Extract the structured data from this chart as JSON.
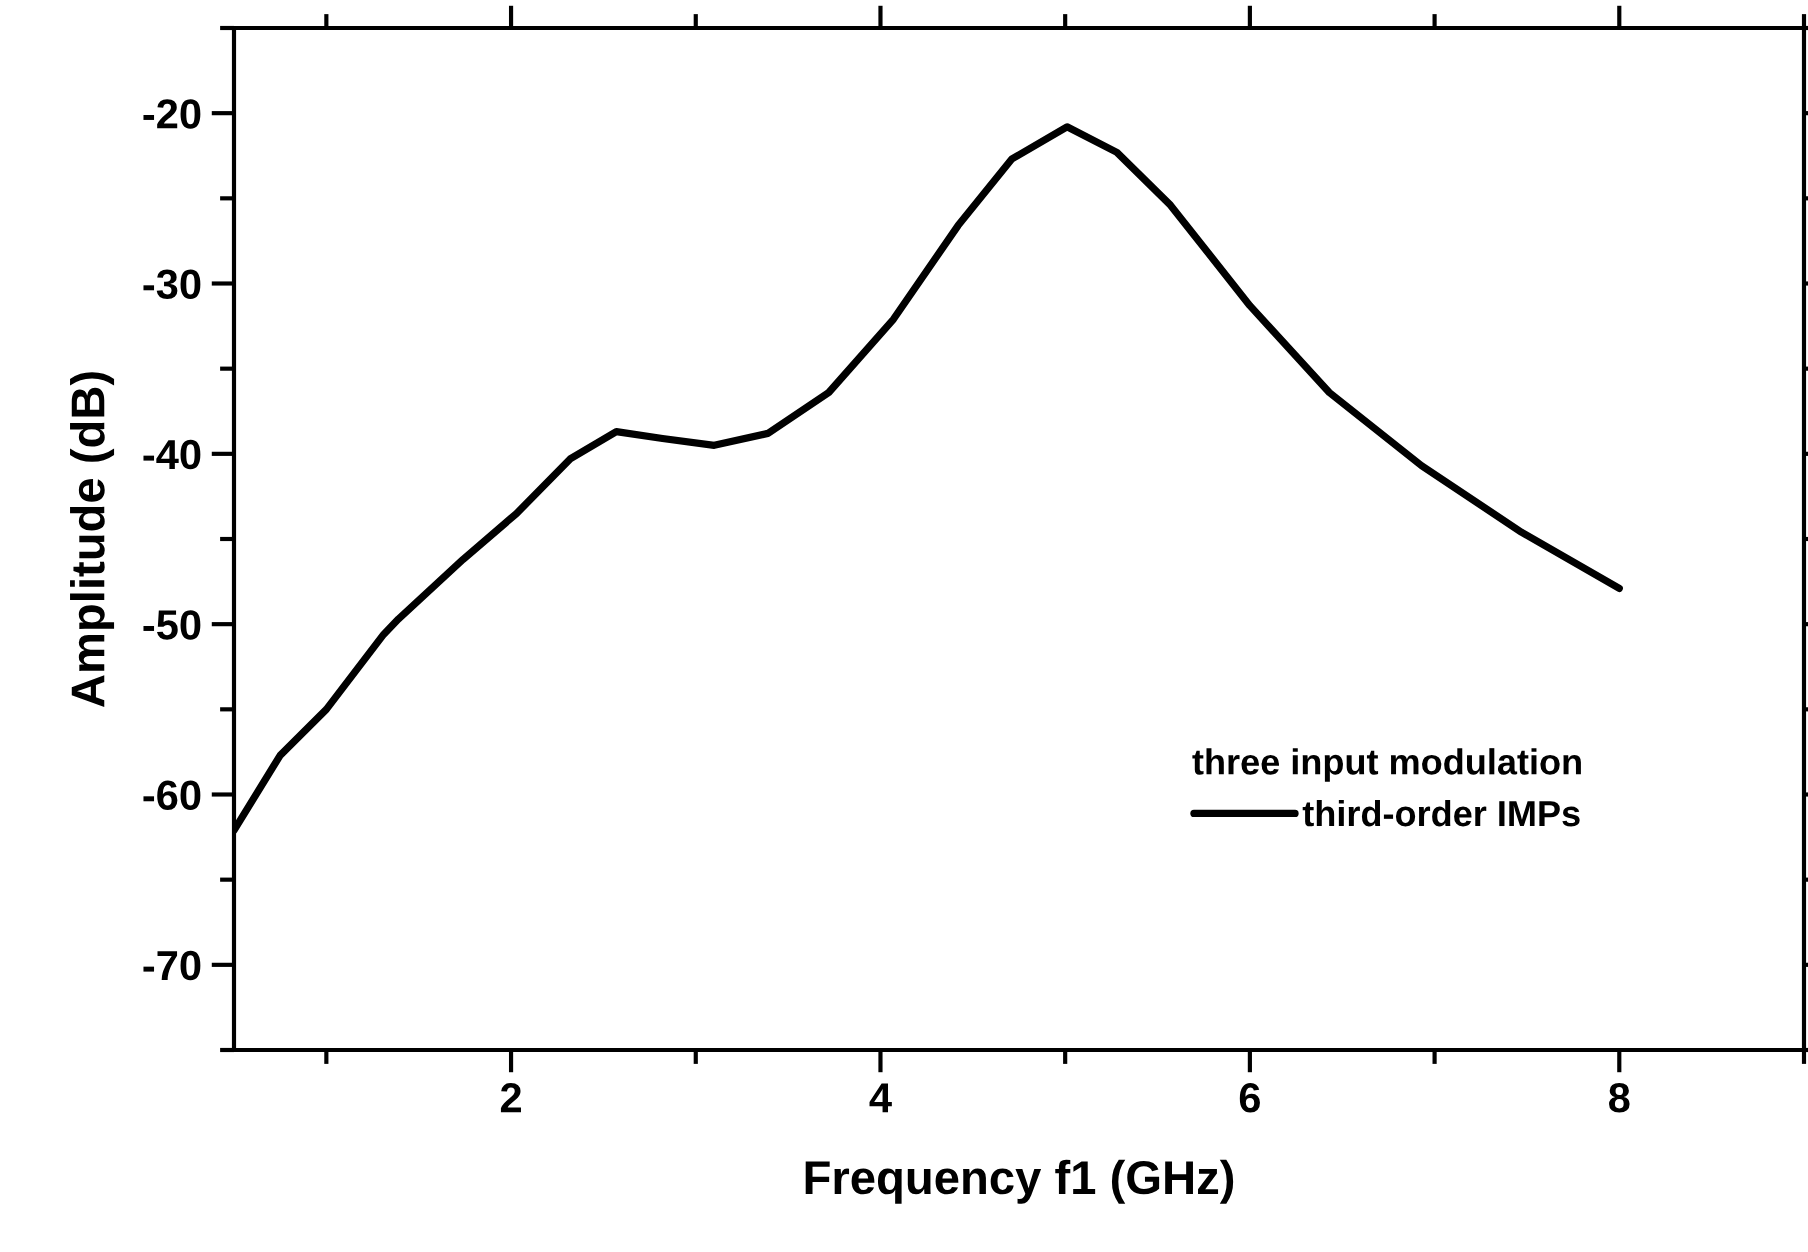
{
  "chart_data": {
    "type": "line",
    "xlabel": "Frequency f1 (GHz)",
    "ylabel": "Amplitude (dB)",
    "legend_title": "three input modulation",
    "legend": "lower right",
    "grid": false,
    "marker": "none",
    "line_style": "solid",
    "xlim": [
      0.5,
      9
    ],
    "xticks": [
      2,
      4,
      6,
      8
    ],
    "ylim": [
      -75,
      -15
    ],
    "yticks": [
      -70,
      -60,
      -50,
      -40,
      -30,
      -20
    ],
    "series": [
      {
        "name": "third-order IMPs",
        "color": "#000000",
        "x": [
          0.5,
          0.75,
          1.0,
          1.31,
          1.39,
          1.74,
          2.03,
          2.32,
          2.57,
          2.82,
          3.1,
          3.39,
          3.72,
          4.07,
          4.42,
          4.71,
          5.01,
          5.28,
          5.57,
          6.0,
          6.43,
          6.93,
          7.47,
          8.0
        ],
        "values": [
          -62.1,
          -57.7,
          -55.0,
          -50.6,
          -49.7,
          -46.2,
          -43.5,
          -40.3,
          -38.7,
          -39.1,
          -39.5,
          -38.8,
          -36.4,
          -32.1,
          -26.6,
          -22.7,
          -20.8,
          -22.3,
          -25.4,
          -31.3,
          -36.4,
          -40.7,
          -44.6,
          -47.9
        ]
      }
    ]
  }
}
